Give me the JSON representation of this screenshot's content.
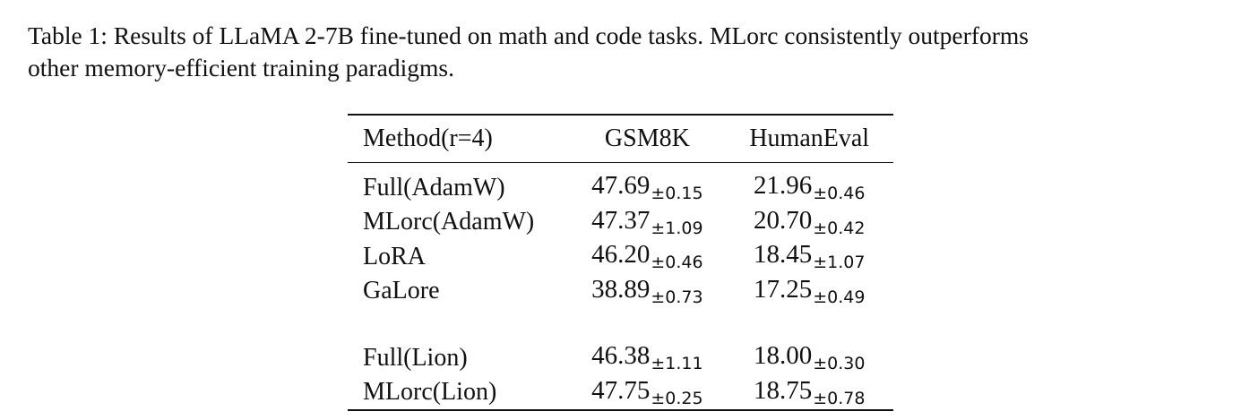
{
  "caption": {
    "line1": "Table 1: Results of LLaMA 2-7B fine-tuned on math and code tasks. MLorc consistently outperforms",
    "line2": "other memory-efficient training paradigms."
  },
  "table": {
    "headers": [
      "Method(r=4)",
      "GSM8K",
      "HumanEval"
    ],
    "groups": [
      [
        {
          "method": "Full(AdamW)",
          "gsm8k": "47.69",
          "gsm8k_std": "±0.15",
          "humaneval": "21.96",
          "humaneval_std": "±0.46"
        },
        {
          "method": "MLorc(AdamW)",
          "gsm8k": "47.37",
          "gsm8k_std": "±1.09",
          "humaneval": "20.70",
          "humaneval_std": "±0.42"
        },
        {
          "method": "LoRA",
          "gsm8k": "46.20",
          "gsm8k_std": "±0.46",
          "humaneval": "18.45",
          "humaneval_std": "±1.07"
        },
        {
          "method": "GaLore",
          "gsm8k": "38.89",
          "gsm8k_std": "±0.73",
          "humaneval": "17.25",
          "humaneval_std": "±0.49"
        }
      ],
      [
        {
          "method": "Full(Lion)",
          "gsm8k": "46.38",
          "gsm8k_std": "±1.11",
          "humaneval": "18.00",
          "humaneval_std": "±0.30"
        },
        {
          "method": "MLorc(Lion)",
          "gsm8k": "47.75",
          "gsm8k_std": "±0.25",
          "humaneval": "18.75",
          "humaneval_std": "±0.78"
        }
      ]
    ]
  }
}
